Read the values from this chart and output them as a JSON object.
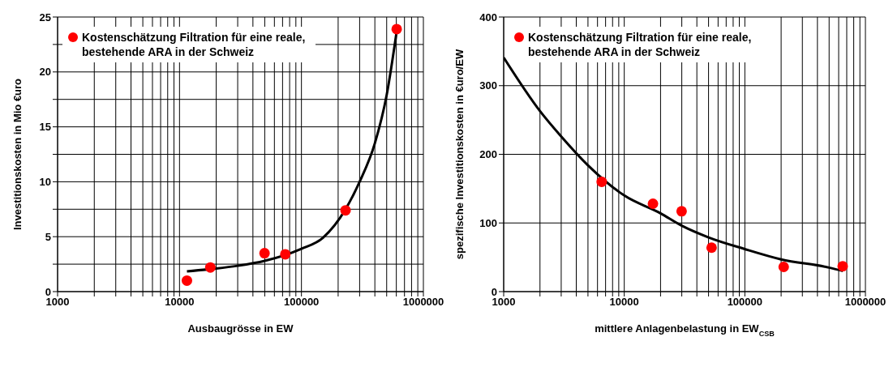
{
  "chart_data": [
    {
      "type": "scatter",
      "xlabel": "Ausbaugrösse in EW",
      "ylabel": "Investitionskosten in Mio €uro",
      "log": "x",
      "grid": true,
      "legend": "top left",
      "marker": "circle",
      "xlim": [
        1000,
        1000000
      ],
      "xticks": [
        1000,
        {
          "value": 2000,
          "label": null
        },
        {
          "value": 3000,
          "label": null
        },
        {
          "value": 4000,
          "label": null
        },
        {
          "value": 5000,
          "label": null
        },
        {
          "value": 6000,
          "label": null
        },
        {
          "value": 7000,
          "label": null
        },
        {
          "value": 8000,
          "label": null
        },
        {
          "value": 9000,
          "label": null
        },
        10000,
        {
          "value": 20000,
          "label": null
        },
        {
          "value": 30000,
          "label": null
        },
        {
          "value": 40000,
          "label": null
        },
        {
          "value": 50000,
          "label": null
        },
        {
          "value": 60000,
          "label": null
        },
        {
          "value": 70000,
          "label": null
        },
        {
          "value": 80000,
          "label": null
        },
        {
          "value": 90000,
          "label": null
        },
        100000,
        {
          "value": 200000,
          "label": null
        },
        {
          "value": 300000,
          "label": null
        },
        {
          "value": 400000,
          "label": null
        },
        {
          "value": 500000,
          "label": null
        },
        {
          "value": 600000,
          "label": null
        },
        {
          "value": 700000,
          "label": null
        },
        {
          "value": 800000,
          "label": null
        },
        {
          "value": 900000,
          "label": null
        },
        1000000
      ],
      "ylim": [
        0,
        25
      ],
      "yticks": [
        0,
        {
          "value": 2.5,
          "label": null
        },
        5,
        {
          "value": 7.5,
          "label": null
        },
        10,
        {
          "value": 12.5,
          "label": null
        },
        15,
        {
          "value": 17.5,
          "label": null
        },
        20,
        {
          "value": 22.5,
          "label": null
        },
        25
      ],
      "series": [
        {
          "name": "Kostenschätzung Filtration  für eine reale, bestehende ARA in der Schweiz",
          "color": "#ff0000",
          "x": [
            11500,
            17900,
            49800,
            73700,
            230000,
            604000
          ],
          "values": [
            1.0,
            2.2,
            3.5,
            3.4,
            7.4,
            23.9
          ]
        },
        {
          "type": "line",
          "marker": "none",
          "color": "#000000",
          "x": [
            11500,
            20000,
            30000,
            50000,
            100000,
            150000,
            230000,
            300000,
            400000,
            500000,
            604000
          ],
          "values": [
            1.85,
            2.1,
            2.35,
            2.8,
            3.9,
            4.9,
            7.5,
            10.0,
            13.5,
            17.9,
            23.7
          ]
        }
      ]
    },
    {
      "type": "scatter",
      "xlabel": "mittlere Anlagenbelastung in EW$_{CSB}$",
      "ylabel": "spezifische Investitionskosten in €uro/EW",
      "log": "x",
      "grid": true,
      "legend": "top left",
      "marker": "circle",
      "xlim": [
        1000,
        1000000
      ],
      "xticks": [
        1000,
        {
          "value": 2000,
          "label": null
        },
        {
          "value": 3000,
          "label": null
        },
        {
          "value": 4000,
          "label": null
        },
        {
          "value": 5000,
          "label": null
        },
        {
          "value": 6000,
          "label": null
        },
        {
          "value": 7000,
          "label": null
        },
        {
          "value": 8000,
          "label": null
        },
        {
          "value": 9000,
          "label": null
        },
        10000,
        {
          "value": 20000,
          "label": null
        },
        {
          "value": 30000,
          "label": null
        },
        {
          "value": 40000,
          "label": null
        },
        {
          "value": 50000,
          "label": null
        },
        {
          "value": 60000,
          "label": null
        },
        {
          "value": 70000,
          "label": null
        },
        {
          "value": 80000,
          "label": null
        },
        {
          "value": 90000,
          "label": null
        },
        100000,
        {
          "value": 200000,
          "label": null
        },
        {
          "value": 300000,
          "label": null
        },
        {
          "value": 400000,
          "label": null
        },
        {
          "value": 500000,
          "label": null
        },
        {
          "value": 600000,
          "label": null
        },
        {
          "value": 700000,
          "label": null
        },
        {
          "value": 800000,
          "label": null
        },
        {
          "value": 900000,
          "label": null
        },
        1000000
      ],
      "ylim": [
        0,
        400
      ],
      "yticks": [
        0,
        100,
        200,
        300,
        400
      ],
      "series": [
        {
          "name": "Kostenschätzung Filtration  für eine reale, bestehende ARA in der Schweiz",
          "color": "#ff0000",
          "x": [
            6500,
            17300,
            29900,
            53000,
            210000,
            648000
          ],
          "values": [
            160,
            128,
            117,
            64,
            36,
            37
          ]
        },
        {
          "type": "line",
          "marker": "none",
          "color": "#000000",
          "x": [
            1000,
            2000,
            3000,
            5000,
            10000,
            20000,
            30000,
            50000,
            100000,
            200000,
            500000,
            650000
          ],
          "values": [
            341,
            263,
            226,
            184,
            140,
            114,
            96,
            79,
            62,
            47,
            35,
            30
          ]
        }
      ]
    }
  ]
}
